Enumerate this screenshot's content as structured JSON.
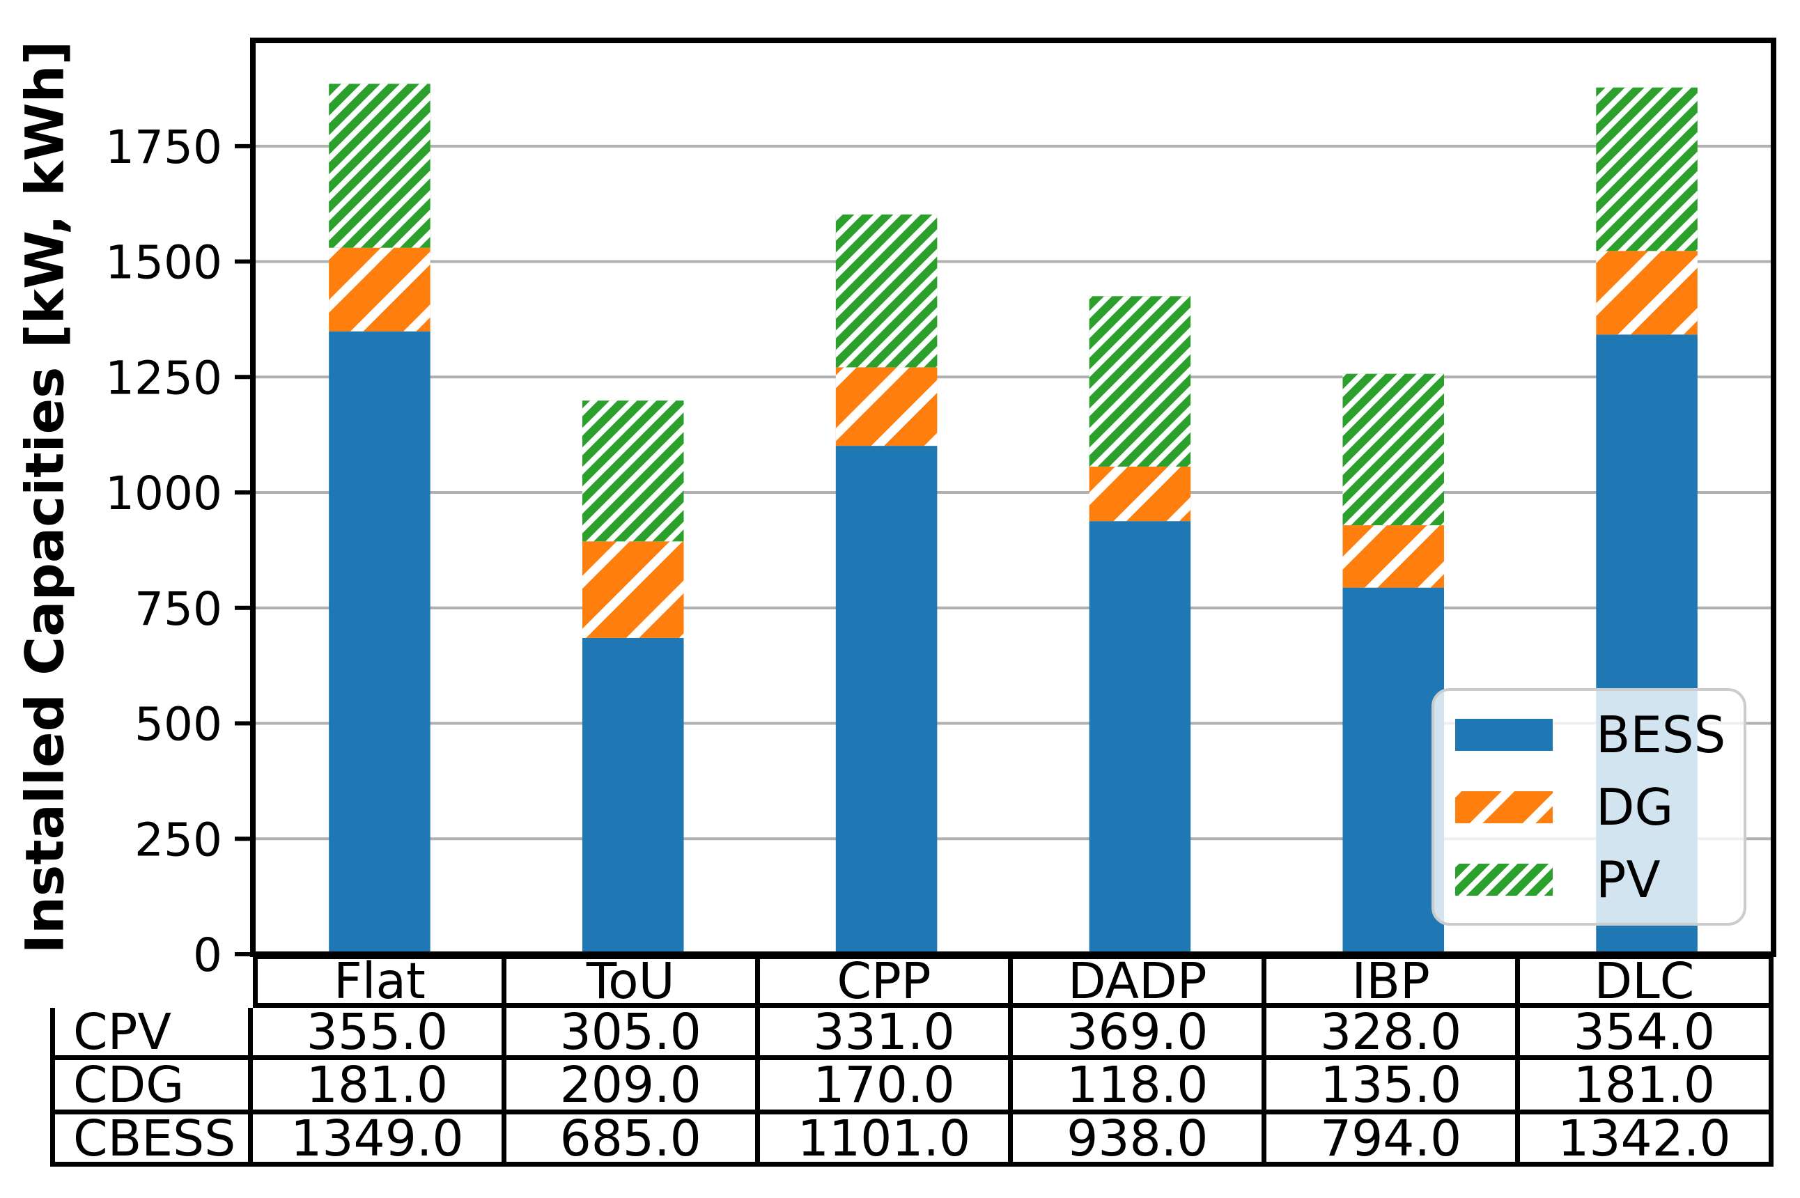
{
  "figure": {
    "background": "#ffffff"
  },
  "chart_data": {
    "type": "bar",
    "stacked": true,
    "title": "",
    "xlabel": "",
    "ylabel": "Installed Capacities [kW, kWh]",
    "categories": [
      "Flat",
      "ToU",
      "CPP",
      "DADP",
      "IBP",
      "DLC"
    ],
    "series": [
      {
        "name": "BESS",
        "color": "#1f77b4",
        "hatch": "none",
        "values": [
          1349.0,
          685.0,
          1101.0,
          938.0,
          794.0,
          1342.0
        ]
      },
      {
        "name": "DG",
        "color": "#ff7f0e",
        "hatch": "/",
        "values": [
          181.0,
          209.0,
          170.0,
          118.0,
          135.0,
          181.0
        ]
      },
      {
        "name": "PV",
        "color": "#2ca02c",
        "hatch": "//",
        "values": [
          355.0,
          305.0,
          331.0,
          369.0,
          328.0,
          354.0
        ]
      }
    ],
    "ylim": [
      0,
      1979
    ],
    "yticks": [
      0,
      250,
      500,
      750,
      1000,
      1250,
      1500,
      1750
    ],
    "grid": "horizontal",
    "bar_width_fraction": 0.4,
    "legend_position": "lower right"
  },
  "legend": {
    "items": [
      {
        "label": "BESS"
      },
      {
        "label": "DG"
      },
      {
        "label": "PV"
      }
    ]
  },
  "table": {
    "columns": [
      "Flat",
      "ToU",
      "CPP",
      "DADP",
      "IBP",
      "DLC"
    ],
    "rows": [
      {
        "label": "CPV",
        "values": [
          "355.0",
          "305.0",
          "331.0",
          "369.0",
          "328.0",
          "354.0"
        ]
      },
      {
        "label": "CDG",
        "values": [
          "181.0",
          "209.0",
          "170.0",
          "118.0",
          "135.0",
          "181.0"
        ]
      },
      {
        "label": "CBESS",
        "values": [
          "1349.0",
          "685.0",
          "1101.0",
          "938.0",
          "794.0",
          "1342.0"
        ]
      }
    ]
  },
  "colors": {
    "grid_line": "#b0b0b0",
    "spine": "#000000",
    "hatch": "#ffffff",
    "legend_border": "#cccccc",
    "text": "#000000"
  }
}
